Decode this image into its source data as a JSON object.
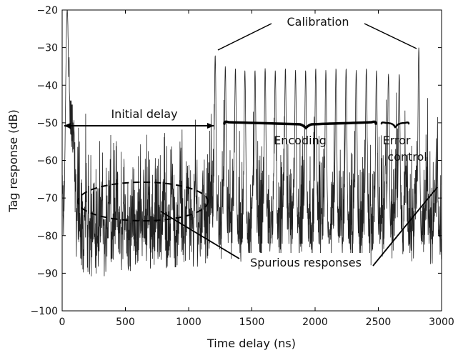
{
  "chart_data": {
    "type": "line",
    "title": "",
    "xlabel": "Time delay (ns)",
    "ylabel": "Tag response (dB)",
    "xlim": [
      0,
      3000
    ],
    "ylim": [
      -100,
      -20
    ],
    "xticks": [
      0,
      500,
      1000,
      1500,
      2000,
      2500,
      3000
    ],
    "yticks": [
      -20,
      -30,
      -40,
      -50,
      -60,
      -70,
      -80,
      -90,
      -100
    ],
    "grid": false,
    "legend": "none",
    "series": [
      {
        "color": "#222222",
        "peaks": [
          {
            "x": 40,
            "y": -20
          },
          {
            "x": 1210,
            "y": -32
          },
          {
            "x": 1290,
            "y": -35
          },
          {
            "x": 1370,
            "y": -35.5
          },
          {
            "x": 1445,
            "y": -36
          },
          {
            "x": 1525,
            "y": -36
          },
          {
            "x": 1605,
            "y": -35.5
          },
          {
            "x": 1685,
            "y": -36
          },
          {
            "x": 1765,
            "y": -35.5
          },
          {
            "x": 1845,
            "y": -36
          },
          {
            "x": 1925,
            "y": -36
          },
          {
            "x": 2005,
            "y": -35.5
          },
          {
            "x": 2085,
            "y": -36
          },
          {
            "x": 2165,
            "y": -35.5
          },
          {
            "x": 2245,
            "y": -35.5
          },
          {
            "x": 2325,
            "y": -36
          },
          {
            "x": 2405,
            "y": -35.5
          },
          {
            "x": 2485,
            "y": -36
          },
          {
            "x": 2580,
            "y": -37
          },
          {
            "x": 2665,
            "y": -37
          },
          {
            "x": 2820,
            "y": -30
          },
          {
            "x": 2960,
            "y": -75
          }
        ]
      }
    ],
    "annotations": {
      "calibration": "Calibration",
      "initial_delay": "Initial delay",
      "encoding": "Encoding",
      "error_line1": "Error",
      "error_line2": "control",
      "spurious": "Spurious responses"
    }
  }
}
